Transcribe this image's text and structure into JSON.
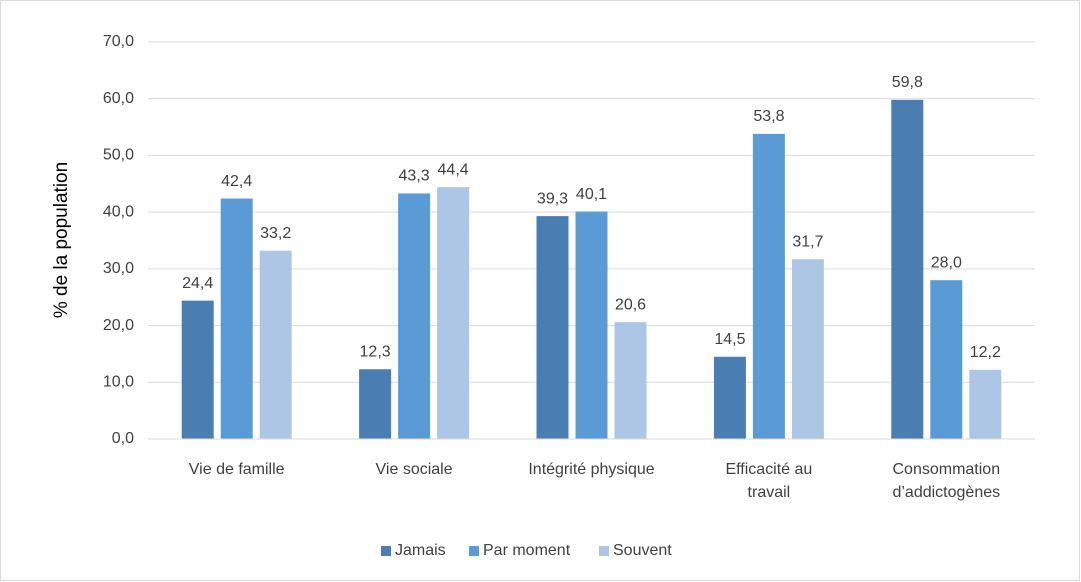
{
  "chart_data": {
    "type": "bar",
    "y_label": "% de la population",
    "categories": [
      "Vie de famille",
      "Vie sociale",
      "Intégrité physique",
      "Efficacité au travail",
      "Consommation d’addictogènes"
    ],
    "series": [
      {
        "name": "Jamais",
        "color": "#4a7eb3",
        "values": [
          24.4,
          12.3,
          39.3,
          14.5,
          59.8
        ],
        "value_labels": [
          "24,4",
          "12,3",
          "39,3",
          "14,5",
          "59,8"
        ]
      },
      {
        "name": "Par moment",
        "color": "#5b9bd5",
        "values": [
          42.4,
          43.3,
          40.1,
          53.8,
          28.0
        ],
        "value_labels": [
          "42,4",
          "43,3",
          "40,1",
          "53,8",
          "28,0"
        ]
      },
      {
        "name": "Souvent",
        "color": "#adc6e6",
        "values": [
          33.2,
          44.4,
          20.6,
          31.7,
          12.2
        ],
        "value_labels": [
          "33,2",
          "44,4",
          "20,6",
          "31,7",
          "12,2"
        ]
      }
    ],
    "ylim": [
      0,
      70
    ],
    "yticks": [
      {
        "value": 0,
        "label": "0,0"
      },
      {
        "value": 10,
        "label": "10,0"
      },
      {
        "value": 20,
        "label": "20,0"
      },
      {
        "value": 30,
        "label": "30,0"
      },
      {
        "value": 40,
        "label": "40,0"
      },
      {
        "value": 50,
        "label": "50,0"
      },
      {
        "value": 60,
        "label": "60,0"
      },
      {
        "value": 70,
        "label": "70,0"
      }
    ],
    "grid": true,
    "legend": "bottom"
  }
}
